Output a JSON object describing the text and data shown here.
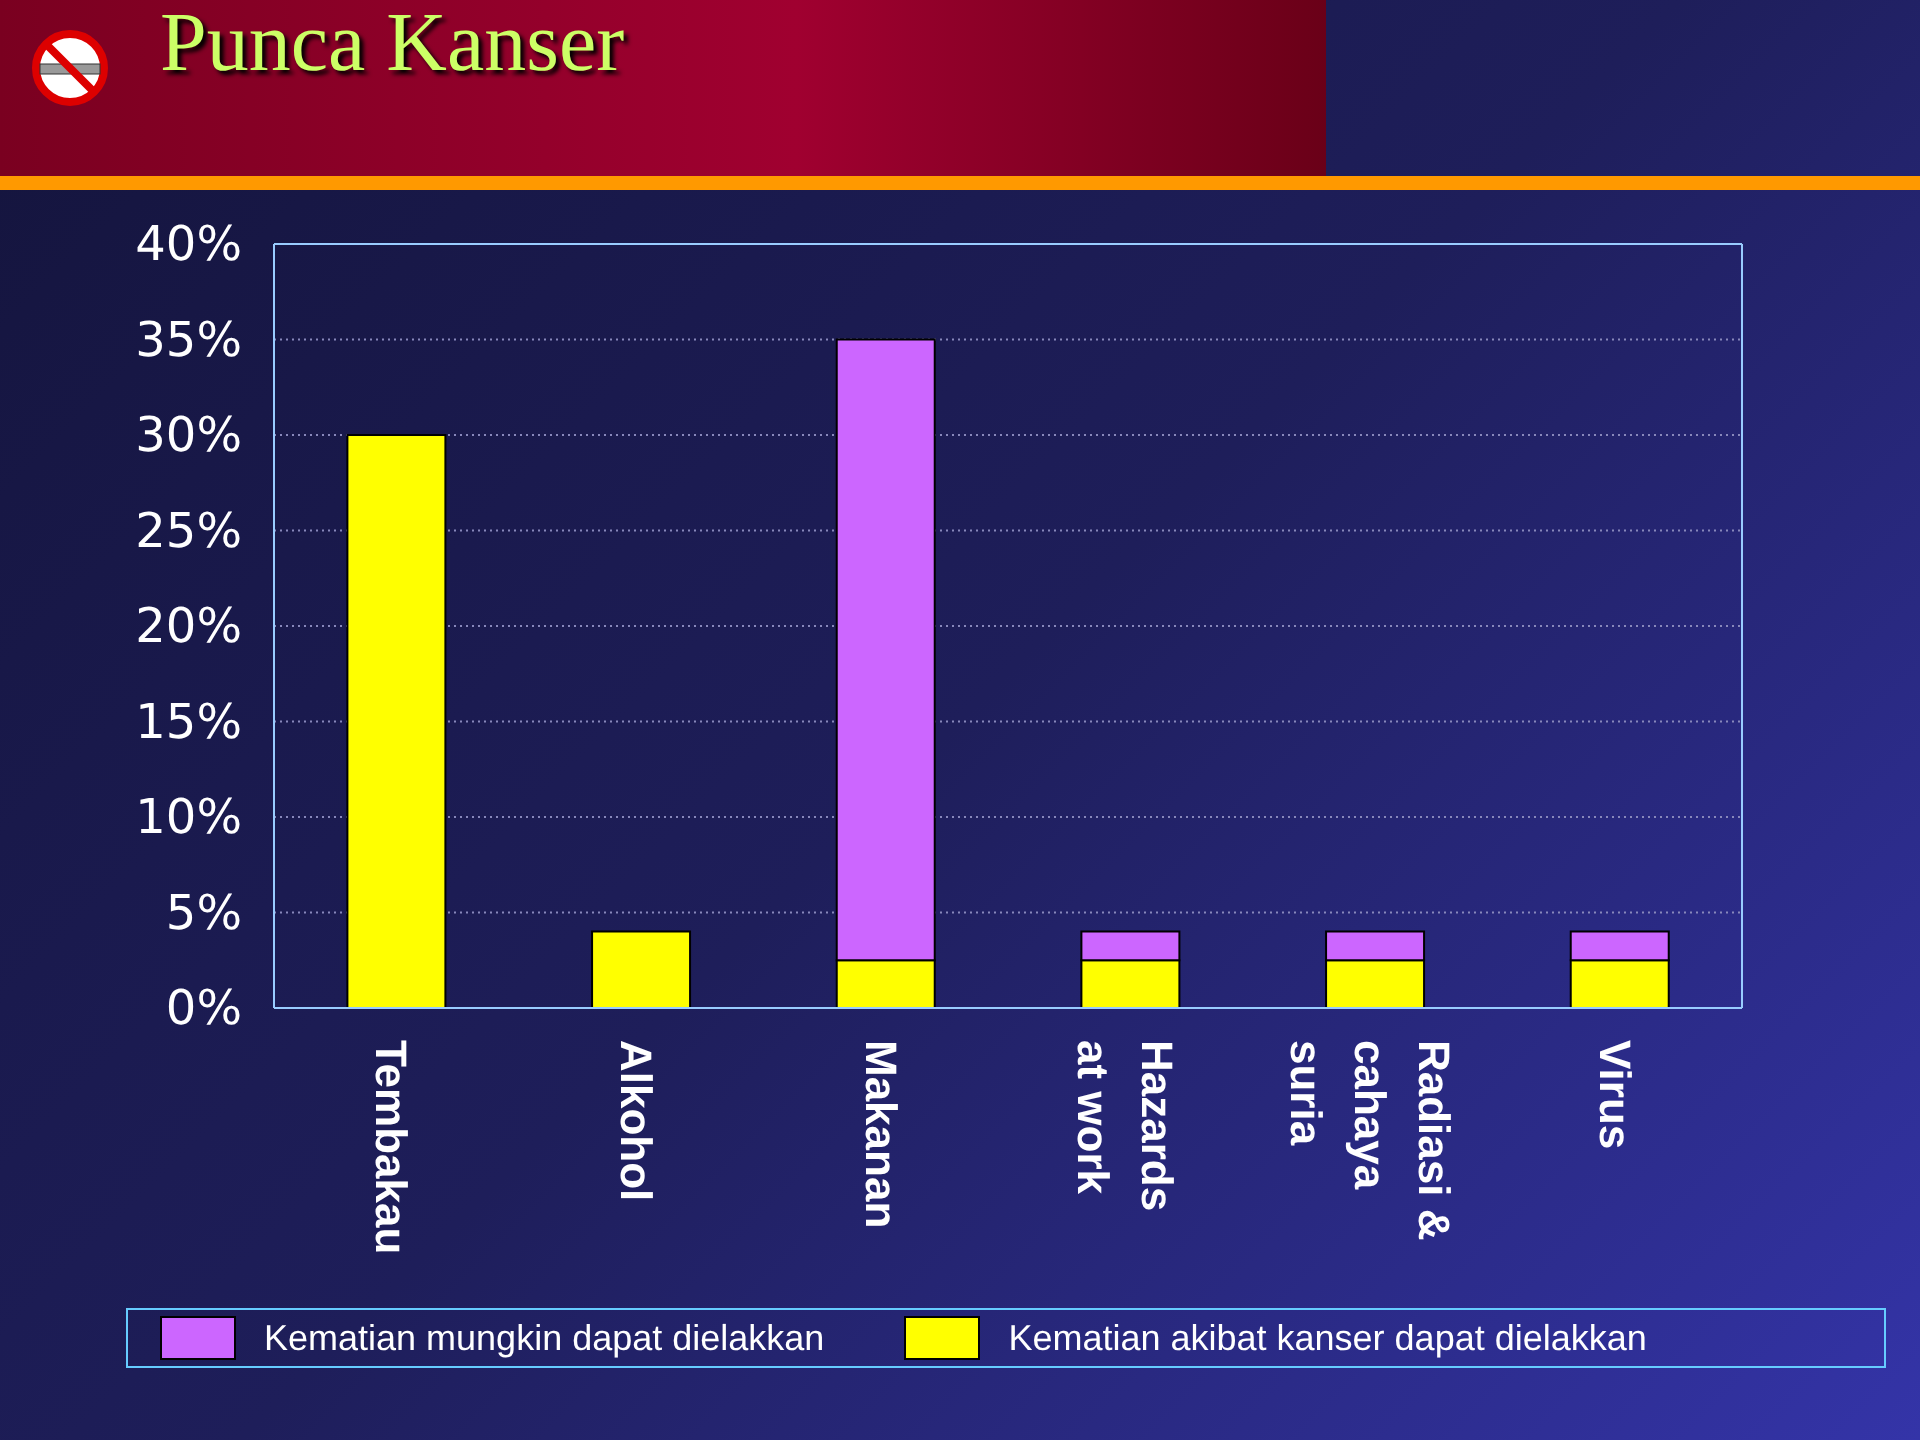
{
  "chart_data": {
    "type": "bar",
    "title": "Punca Kanser",
    "stacked": true,
    "categories": [
      "Tembakau",
      "Alkohol",
      "Makanan",
      "Hazards at work",
      "Radiasi & cahaya suria",
      "Virus"
    ],
    "series": [
      {
        "name": "Kematian akibat kanser dapat dielakkan",
        "color": "#ffff00",
        "values": [
          30,
          4,
          2.5,
          2.5,
          2.5,
          2.5
        ]
      },
      {
        "name": "Kematian mungkin dapat dielakkan",
        "color": "#cc66ff",
        "values": [
          0,
          0,
          32.5,
          1.5,
          1.5,
          1.5
        ]
      }
    ],
    "ylim": [
      0,
      40
    ],
    "yticks": [
      {
        "value": 0,
        "label": "0%"
      },
      {
        "value": 5,
        "label": "5%"
      },
      {
        "value": 10,
        "label": "10%"
      },
      {
        "value": 15,
        "label": "15%"
      },
      {
        "value": 20,
        "label": "20%"
      },
      {
        "value": 25,
        "label": "25%"
      },
      {
        "value": 30,
        "label": "30%"
      },
      {
        "value": 35,
        "label": "35%"
      },
      {
        "value": 40,
        "label": "40%"
      }
    ],
    "grid": "y",
    "legend": "bottom"
  }
}
